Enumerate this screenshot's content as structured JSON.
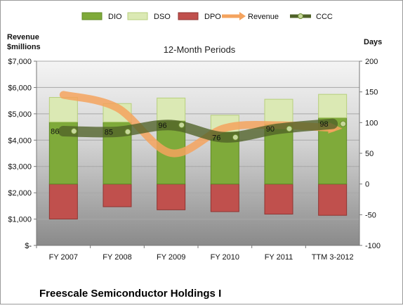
{
  "chart_data": {
    "type": "bar",
    "title": "12-Month Periods",
    "company": "Freescale Semiconductor Holdings I",
    "left_axis_label": [
      "Revenue",
      "$millions"
    ],
    "right_axis_label": "Days",
    "categories": [
      "FY 2007",
      "FY 2008",
      "FY 2009",
      "FY 2010",
      "FY 2011",
      "TTM 3-2012"
    ],
    "left_axis": {
      "min": 0,
      "max": 7000,
      "step": 1000,
      "tick_labels": [
        "$-",
        "$1,000",
        "$2,000",
        "$3,000",
        "$4,000",
        "$5,000",
        "$6,000",
        "$7,000"
      ]
    },
    "right_axis": {
      "min": -100,
      "max": 200,
      "step": 50,
      "tick_labels": [
        "-100",
        "-50",
        "0",
        "50",
        "100",
        "150",
        "200"
      ]
    },
    "grid": true,
    "legend_position": "top",
    "legend": [
      "DIO",
      "DSO",
      "DPO",
      "Revenue",
      "CCC"
    ],
    "series": [
      {
        "name": "DIO",
        "axis": "right",
        "color": "#7faa3a",
        "values": [
          101,
          101,
          103,
          85,
          98,
          108
        ]
      },
      {
        "name": "DSO",
        "axis": "right",
        "color": "#dbe9b4",
        "values": [
          40,
          30,
          37,
          27,
          40,
          38
        ]
      },
      {
        "name": "DPO",
        "axis": "right",
        "color": "#c0504d",
        "values": [
          -57,
          -37,
          -42,
          -45,
          -49,
          -51
        ]
      },
      {
        "name": "Revenue",
        "axis": "left",
        "color": "#f4a35e",
        "values": [
          5720,
          5230,
          3510,
          4460,
          4570,
          4460
        ]
      },
      {
        "name": "CCC",
        "axis": "right",
        "color": "#4f6228",
        "values": [
          86,
          85,
          96,
          76,
          90,
          98
        ],
        "data_labels": [
          "86",
          "85",
          "96",
          "76",
          "90",
          "98"
        ]
      }
    ]
  }
}
